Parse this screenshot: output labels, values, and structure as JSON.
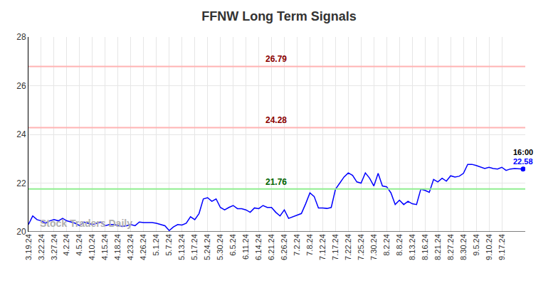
{
  "chart_data": {
    "type": "line",
    "title": "FFNW Long Term Signals",
    "watermark": "Stock Traders Daily",
    "color": "#0000ff",
    "grid": true,
    "ylim": [
      20,
      28
    ],
    "yticks": [
      20,
      22,
      24,
      26,
      28
    ],
    "categories": [
      "3.19.24",
      null,
      null,
      "3.22.24",
      null,
      null,
      "3.27.24",
      null,
      null,
      "4.2.24",
      null,
      null,
      "4.5.24",
      null,
      null,
      "4.10.24",
      null,
      null,
      "4.15.24",
      null,
      null,
      "4.18.24",
      null,
      null,
      "4.23.24",
      null,
      null,
      "4.26.24",
      null,
      null,
      "5.1.24",
      null,
      null,
      "5.7.24",
      null,
      null,
      "5.13.24",
      null,
      null,
      "5.17.24",
      null,
      null,
      "5.24.24",
      null,
      null,
      "5.30.24",
      null,
      null,
      "6.5.24",
      null,
      null,
      "6.11.24",
      null,
      null,
      "6.14.24",
      null,
      null,
      "6.21.24",
      null,
      null,
      "6.26.24",
      null,
      null,
      "7.2.24",
      null,
      null,
      "7.8.24",
      null,
      null,
      "7.12.24",
      null,
      null,
      "7.17.24",
      null,
      null,
      "7.22.24",
      null,
      null,
      "7.25.24",
      null,
      null,
      "7.30.24",
      null,
      null,
      "8.2.24",
      null,
      null,
      "8.8.24",
      null,
      null,
      "8.13.24",
      null,
      null,
      "8.16.24",
      null,
      null,
      "8.21.24",
      null,
      null,
      "8.27.24",
      null,
      null,
      "8.30.24",
      null,
      null,
      "9.5.24",
      null,
      null,
      "9.10.24",
      null,
      null,
      "9.17.24",
      null,
      null,
      null,
      null,
      null
    ],
    "values": [
      20.3,
      20.65,
      20.5,
      20.45,
      20.35,
      20.45,
      20.5,
      20.45,
      20.55,
      20.45,
      20.4,
      20.35,
      20.25,
      20.4,
      20.35,
      20.3,
      20.35,
      20.4,
      20.25,
      20.3,
      20.3,
      20.25,
      20.22,
      20.25,
      20.3,
      20.25,
      20.4,
      20.38,
      20.38,
      20.38,
      20.35,
      20.3,
      20.25,
      20.05,
      20.2,
      20.3,
      20.28,
      20.35,
      20.62,
      20.5,
      20.75,
      21.35,
      21.4,
      21.25,
      21.35,
      21.0,
      20.9,
      21.0,
      21.08,
      20.95,
      20.95,
      20.9,
      20.8,
      20.98,
      20.95,
      21.08,
      21.0,
      21.0,
      20.8,
      20.65,
      20.9,
      20.55,
      20.62,
      20.7,
      20.75,
      21.15,
      21.6,
      21.45,
      20.98,
      20.98,
      20.96,
      21.0,
      21.75,
      22.0,
      22.25,
      22.42,
      22.32,
      22.05,
      22.0,
      22.42,
      22.2,
      21.88,
      22.4,
      21.88,
      21.85,
      21.6,
      21.12,
      21.3,
      21.12,
      21.25,
      21.15,
      21.12,
      21.75,
      21.7,
      21.62,
      22.15,
      22.05,
      22.2,
      22.08,
      22.3,
      22.25,
      22.28,
      22.4,
      22.77,
      22.77,
      22.72,
      22.65,
      22.6,
      22.65,
      22.6,
      22.58,
      22.65,
      22.52,
      22.58,
      22.6,
      22.58,
      22.58
    ],
    "reference_lines": [
      {
        "value": 26.79,
        "label": "26.79",
        "color": "#ffb3b3",
        "text_color": "#8b0000"
      },
      {
        "value": 24.28,
        "label": "24.28",
        "color": "#ffb3b3",
        "text_color": "#8b0000"
      },
      {
        "value": 21.76,
        "label": "21.76",
        "color": "#90ee90",
        "text_color": "#006400"
      }
    ],
    "last_point": {
      "time": "16:00",
      "value_label": "22.58"
    }
  }
}
